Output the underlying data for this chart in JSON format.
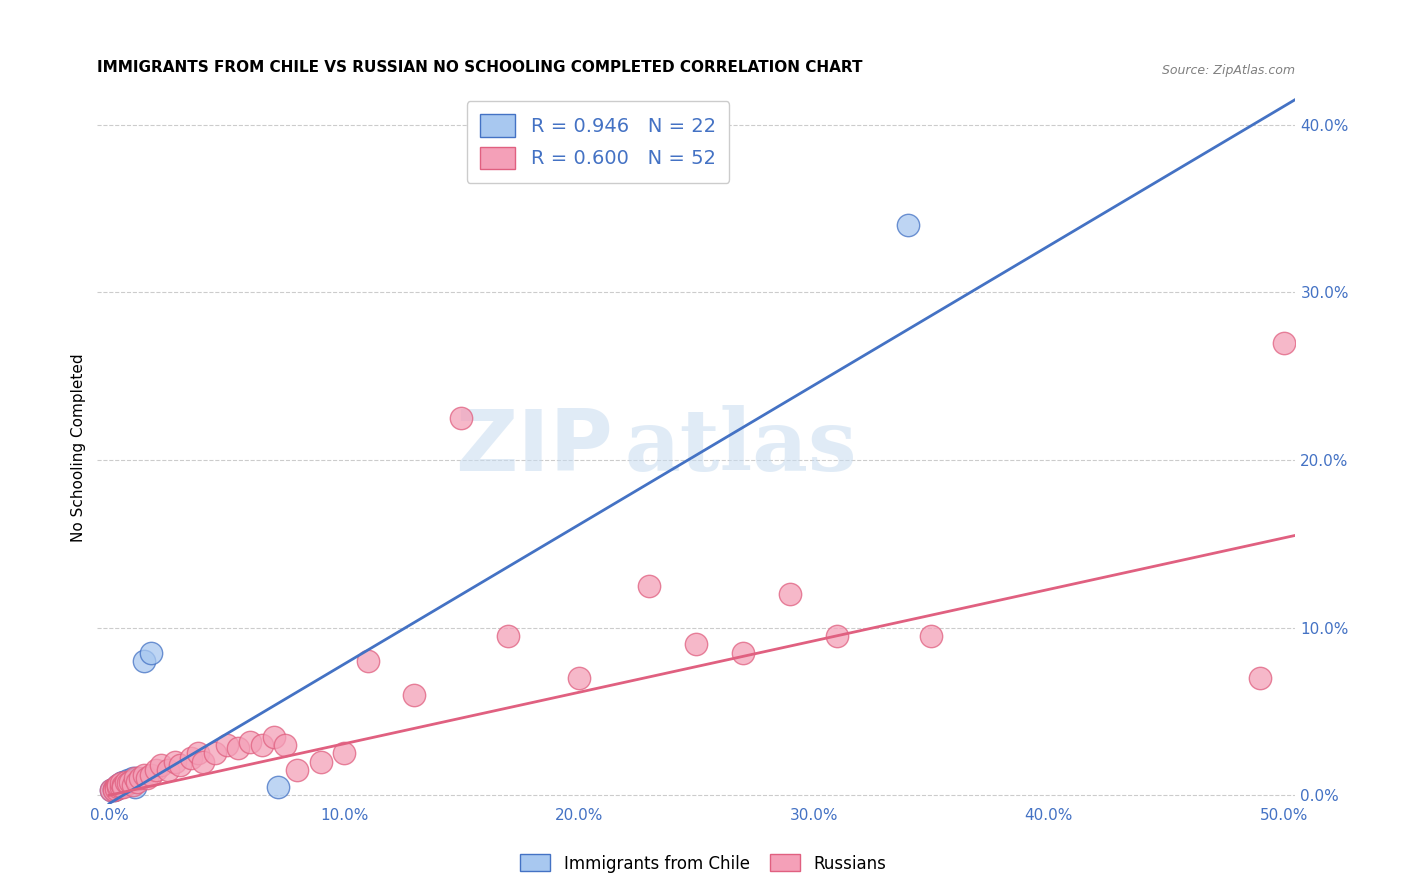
{
  "title": "IMMIGRANTS FROM CHILE VS RUSSIAN NO SCHOOLING COMPLETED CORRELATION CHART",
  "source": "Source: ZipAtlas.com",
  "ylabel": "No Schooling Completed",
  "xlabel_ticks": [
    "0.0%",
    "10.0%",
    "20.0%",
    "30.0%",
    "40.0%",
    "50.0%"
  ],
  "xlabel_vals": [
    0.0,
    0.1,
    0.2,
    0.3,
    0.4,
    0.5
  ],
  "ylabel_ticks": [
    "0.0%",
    "10.0%",
    "20.0%",
    "30.0%",
    "40.0%"
  ],
  "ylabel_vals": [
    0.0,
    0.1,
    0.2,
    0.3,
    0.4
  ],
  "xlim": [
    -0.005,
    0.505
  ],
  "ylim": [
    -0.005,
    0.42
  ],
  "chile_color": "#A8C8F0",
  "russia_color": "#F4A0B8",
  "chile_line_color": "#4472C4",
  "russia_line_color": "#E06080",
  "chile_R": 0.946,
  "chile_N": 22,
  "russia_R": 0.6,
  "russia_N": 52,
  "watermark_zip": "ZIP",
  "watermark_atlas": "atlas",
  "legend_label_chile": "Immigrants from Chile",
  "legend_label_russia": "Russians",
  "chile_line_x0": 0.0,
  "chile_line_y0": -0.005,
  "chile_line_x1": 0.505,
  "chile_line_y1": 0.415,
  "russia_line_x0": 0.0,
  "russia_line_y0": 0.0,
  "russia_line_x1": 0.505,
  "russia_line_y1": 0.155,
  "chile_x": [
    0.001,
    0.002,
    0.002,
    0.003,
    0.003,
    0.004,
    0.004,
    0.005,
    0.005,
    0.006,
    0.006,
    0.007,
    0.007,
    0.008,
    0.009,
    0.01,
    0.011,
    0.012,
    0.015,
    0.018,
    0.072,
    0.34
  ],
  "chile_y": [
    0.003,
    0.003,
    0.004,
    0.005,
    0.004,
    0.006,
    0.005,
    0.007,
    0.005,
    0.006,
    0.008,
    0.007,
    0.006,
    0.009,
    0.008,
    0.01,
    0.005,
    0.01,
    0.08,
    0.085,
    0.005,
    0.34
  ],
  "russia_x": [
    0.001,
    0.002,
    0.002,
    0.003,
    0.003,
    0.004,
    0.004,
    0.005,
    0.005,
    0.006,
    0.006,
    0.007,
    0.008,
    0.009,
    0.01,
    0.011,
    0.012,
    0.013,
    0.015,
    0.016,
    0.018,
    0.02,
    0.022,
    0.025,
    0.028,
    0.03,
    0.035,
    0.038,
    0.04,
    0.045,
    0.05,
    0.055,
    0.06,
    0.065,
    0.07,
    0.075,
    0.08,
    0.09,
    0.1,
    0.11,
    0.13,
    0.15,
    0.17,
    0.2,
    0.23,
    0.27,
    0.31,
    0.35,
    0.25,
    0.29,
    0.49,
    0.5
  ],
  "russia_y": [
    0.003,
    0.004,
    0.003,
    0.005,
    0.004,
    0.005,
    0.006,
    0.005,
    0.007,
    0.006,
    0.005,
    0.008,
    0.007,
    0.008,
    0.006,
    0.01,
    0.008,
    0.01,
    0.012,
    0.01,
    0.012,
    0.015,
    0.018,
    0.015,
    0.02,
    0.018,
    0.022,
    0.025,
    0.02,
    0.025,
    0.03,
    0.028,
    0.032,
    0.03,
    0.035,
    0.03,
    0.015,
    0.02,
    0.025,
    0.08,
    0.06,
    0.225,
    0.095,
    0.07,
    0.125,
    0.085,
    0.095,
    0.095,
    0.09,
    0.12,
    0.07,
    0.27
  ]
}
